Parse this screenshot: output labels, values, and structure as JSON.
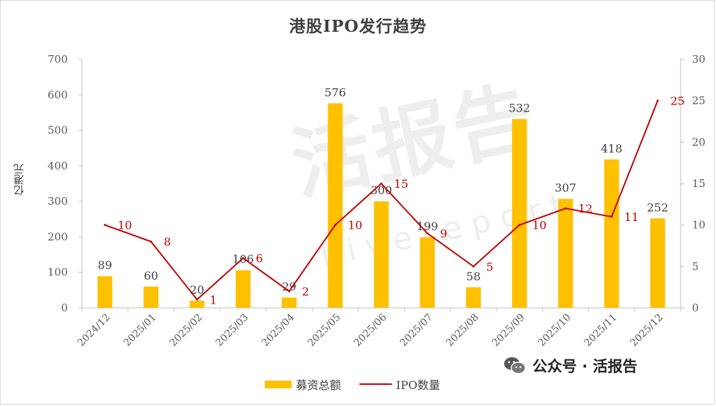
{
  "chart_data": {
    "type": "bar",
    "title": "港股IPO发行趋势",
    "ylabel": "亿港元",
    "categories": [
      "2024/12",
      "2025/01",
      "2025/02",
      "2025/03",
      "2025/04",
      "2025/05",
      "2025/06",
      "2025/07",
      "2025/08",
      "2025/09",
      "2025/10",
      "2025/11",
      "2025/12"
    ],
    "series": [
      {
        "name": "募资总额",
        "type": "bar",
        "axis": "left",
        "color": "#ffc000",
        "values": [
          89,
          60,
          20,
          106,
          29,
          576,
          300,
          199,
          58,
          532,
          307,
          418,
          252
        ]
      },
      {
        "name": "IPO数量",
        "type": "line",
        "axis": "right",
        "color": "#c00000",
        "values": [
          10,
          8,
          1,
          6,
          2,
          10,
          15,
          9,
          5,
          10,
          12,
          11,
          25
        ]
      }
    ],
    "ylim_left": [
      0,
      700
    ],
    "yticks_left": [
      "0",
      "100",
      "200",
      "300",
      "400",
      "500",
      "600",
      "700"
    ],
    "ylim_right": [
      0,
      30
    ],
    "yticks_right": [
      "0",
      "5",
      "10",
      "15",
      "20",
      "25",
      "30"
    ],
    "grid": false,
    "legend_position": "bottom"
  },
  "watermark": {
    "brand": "活报告",
    "brand_en": "Livereport",
    "footer_icon": "wechat-icon",
    "footer_text": "公众号 · 活报告"
  }
}
